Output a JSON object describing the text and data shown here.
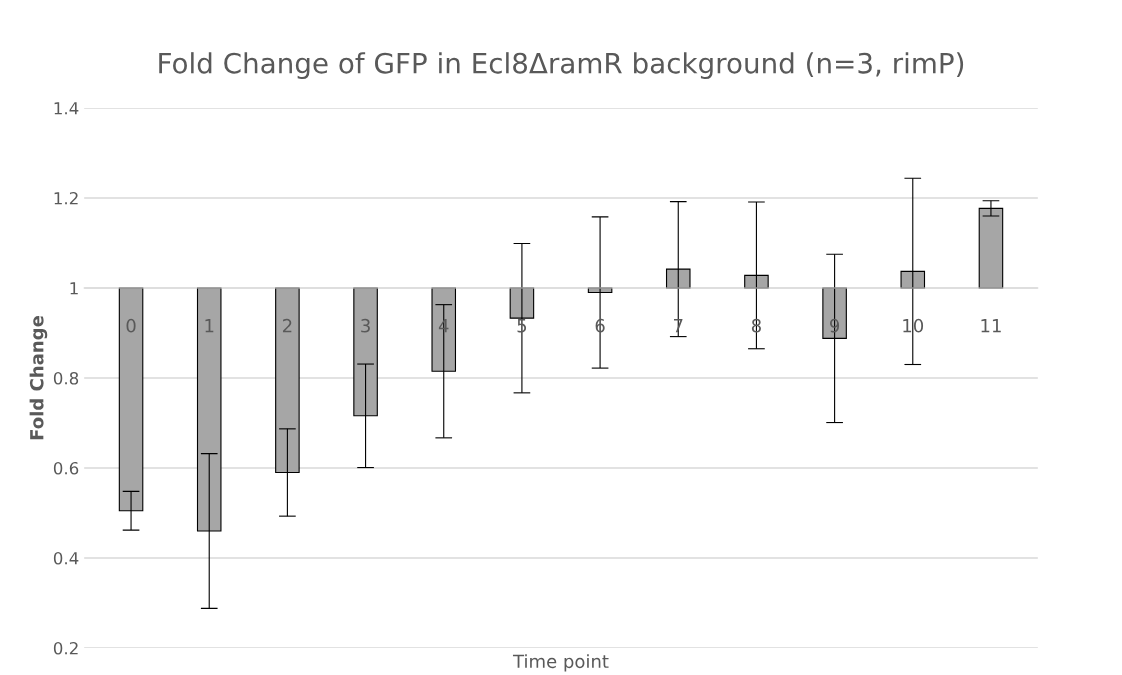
{
  "chart_data": {
    "type": "bar",
    "title": "Fold Change of GFP in Ecl8ΔramR background (n=3, rimP)",
    "xlabel": "Time point",
    "ylabel": "Fold Change",
    "categories": [
      "0",
      "1",
      "2",
      "3",
      "4",
      "5",
      "6",
      "7",
      "8",
      "9",
      "10",
      "11"
    ],
    "base": [
      1,
      1,
      1,
      1,
      1,
      1,
      1,
      1,
      1,
      1,
      1,
      1
    ],
    "values": [
      -0.495,
      -0.54,
      -0.41,
      -0.284,
      -0.185,
      -0.067,
      -0.01,
      0.042,
      0.028,
      -0.112,
      0.037,
      0.177
    ],
    "errors": [
      0.043,
      0.172,
      0.097,
      0.115,
      0.148,
      0.166,
      0.168,
      0.15,
      0.163,
      0.187,
      0.207,
      0.017
    ],
    "color": "#a6a6a6",
    "ylim": [
      0.2,
      1.4
    ],
    "yticks": [
      0.2,
      0.4,
      0.6,
      0.8,
      {
        "value": 1,
        "label": "1"
      },
      1.2,
      1.4
    ],
    "grid": "y"
  }
}
